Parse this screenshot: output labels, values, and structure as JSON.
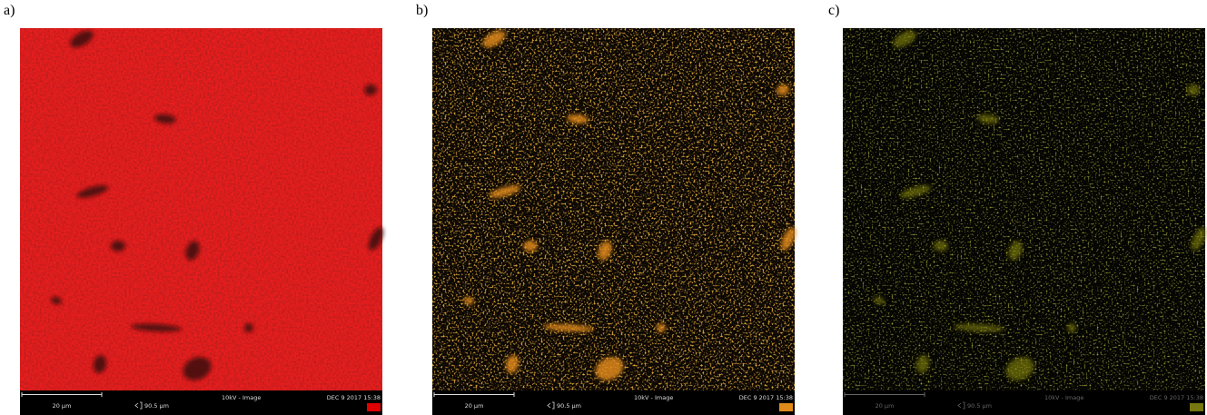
{
  "panels": [
    {
      "label": "a)",
      "scale_bar": "20 µm",
      "field_width": "90.5 µm",
      "mode": "10kV - Image",
      "date": "DEC 9 2017 15:38"
    },
    {
      "label": "b)",
      "scale_bar": "20 µm",
      "field_width": "90.5 µm",
      "mode": "10kV - Image",
      "date": "DEC 9 2017 15:38"
    },
    {
      "label": "c)",
      "scale_bar": "20 µm",
      "field_width": "90.5 µm",
      "mode": "10kV - Image",
      "date": "DEC 9 2017 15:38"
    }
  ]
}
